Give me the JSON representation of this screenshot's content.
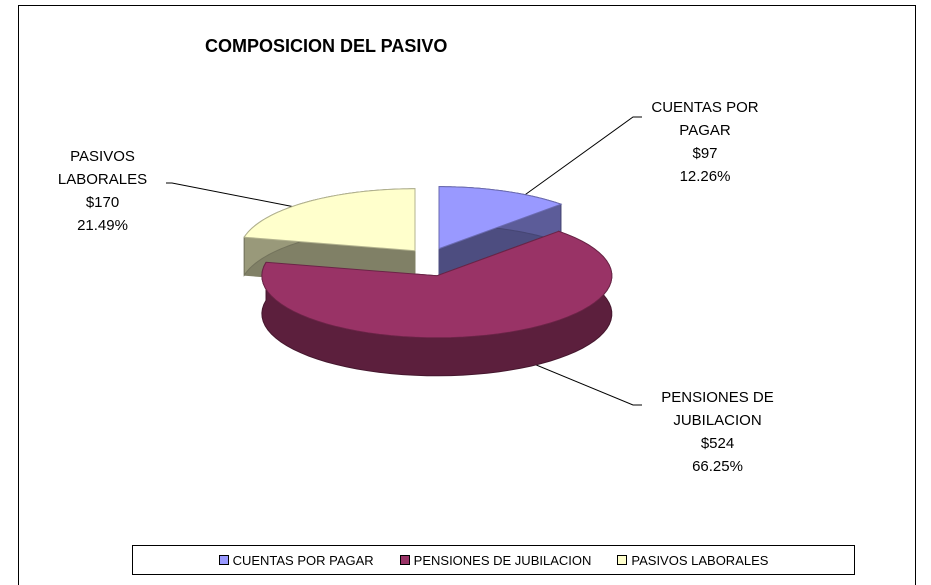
{
  "chart_data": {
    "type": "pie3d",
    "title": "COMPOSICION DEL PASIVO",
    "categories": [
      "CUENTAS POR PAGAR",
      "PENSIONES DE JUBILACION",
      "PASIVOS LABORALES"
    ],
    "values": [
      97,
      524,
      170
    ],
    "value_labels": [
      "$97",
      "$524",
      "$170"
    ],
    "percents": [
      12.26,
      66.25,
      21.49
    ],
    "percent_labels": [
      "12.26%",
      "66.25%",
      "21.49%"
    ],
    "colors": [
      "#9999ff",
      "#993366",
      "#ffffcc"
    ],
    "legend": "bottom"
  }
}
